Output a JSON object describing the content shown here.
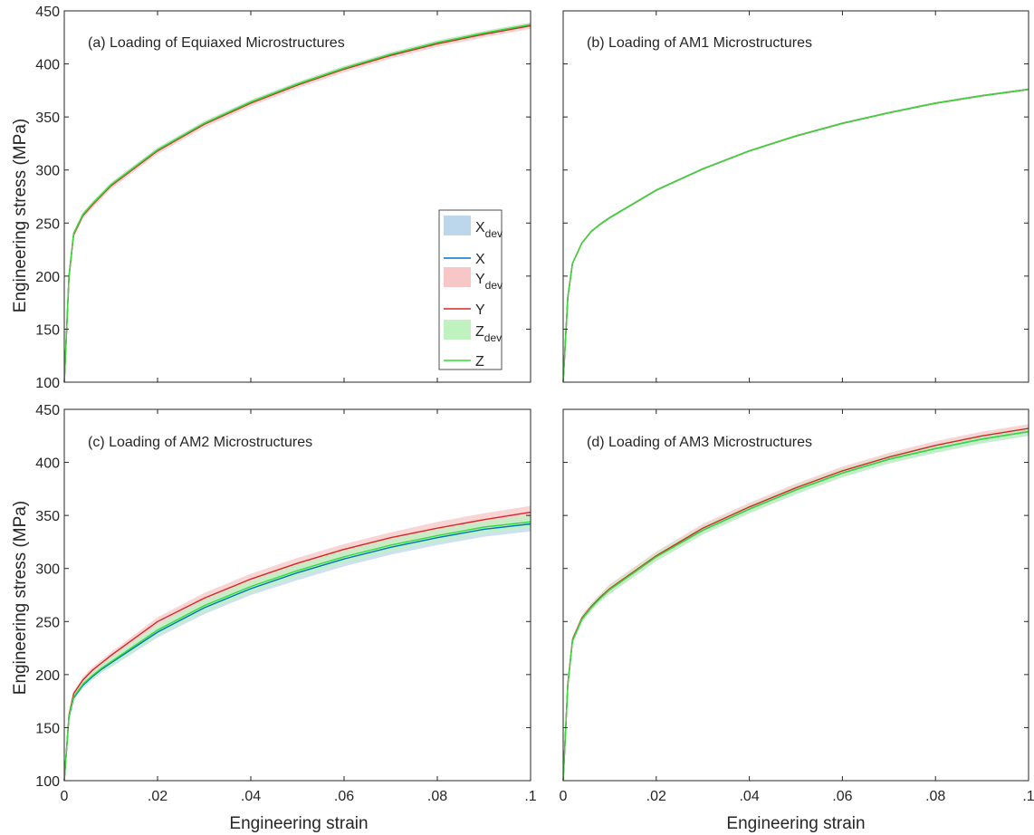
{
  "chart_data": [
    {
      "type": "line",
      "title": "(a) Loading of Equiaxed Microstructures",
      "xlabel": "",
      "ylabel": "Engineering stress (MPa)",
      "xlim": [
        0,
        0.1
      ],
      "ylim": [
        100,
        450
      ],
      "xticks": [],
      "yticks": [
        "100",
        "150",
        "200",
        "250",
        "300",
        "350",
        "400",
        "450"
      ],
      "legend": [
        {
          "key": "Xdev",
          "base": "X",
          "sub": "dev",
          "kind": "band",
          "color": "#bcd7ec"
        },
        {
          "key": "X",
          "base": "X",
          "sub": "",
          "kind": "line",
          "color": "#0072bd"
        },
        {
          "key": "Ydev",
          "base": "Y",
          "sub": "dev",
          "kind": "band",
          "color": "#f7c6c6"
        },
        {
          "key": "Y",
          "base": "Y",
          "sub": "",
          "kind": "line",
          "color": "#d62728"
        },
        {
          "key": "Zdev",
          "base": "Z",
          "sub": "dev",
          "kind": "band",
          "color": "#bff2bf"
        },
        {
          "key": "Z",
          "base": "Z",
          "sub": "",
          "kind": "line",
          "color": "#33dd33"
        }
      ],
      "x": [
        0,
        0.001,
        0.002,
        0.004,
        0.006,
        0.008,
        0.01,
        0.02,
        0.03,
        0.04,
        0.05,
        0.06,
        0.07,
        0.08,
        0.09,
        0.1
      ],
      "series": [
        {
          "name": "X",
          "color": "#0072bd",
          "values": [
            100,
            200,
            240,
            258,
            268,
            277,
            286,
            319,
            344,
            364,
            381,
            396,
            409,
            420,
            429,
            437
          ],
          "band": [
            2,
            2,
            2,
            2,
            2,
            2,
            2,
            2,
            2,
            2,
            2,
            2,
            2,
            2,
            2,
            2
          ]
        },
        {
          "name": "Y",
          "color": "#d62728",
          "values": [
            100,
            199,
            239,
            257,
            267,
            276,
            285,
            318,
            343,
            363,
            380,
            395,
            408,
            419,
            428,
            436
          ],
          "band": [
            3,
            3,
            3,
            3,
            3,
            3,
            3,
            3,
            3,
            3,
            3,
            3,
            3,
            3,
            3,
            3
          ]
        },
        {
          "name": "Z",
          "color": "#33dd33",
          "values": [
            100,
            200,
            240,
            258,
            268,
            277,
            286,
            319,
            344,
            364,
            381,
            396,
            409,
            420,
            429,
            437
          ],
          "band": [
            2,
            2,
            2,
            2,
            2,
            2,
            2,
            2,
            2,
            2,
            2,
            2,
            2,
            2,
            2,
            2
          ]
        }
      ]
    },
    {
      "type": "line",
      "title": "(b) Loading of AM1 Microstructures",
      "xlabel": "",
      "ylabel": "",
      "xlim": [
        0,
        0.1
      ],
      "ylim": [
        100,
        450
      ],
      "xticks": [],
      "yticks": [],
      "x": [
        0,
        0.001,
        0.002,
        0.004,
        0.006,
        0.008,
        0.01,
        0.02,
        0.03,
        0.04,
        0.05,
        0.06,
        0.07,
        0.08,
        0.09,
        0.1
      ],
      "series": [
        {
          "name": "X",
          "color": "#0072bd",
          "values": [
            100,
            180,
            212,
            231,
            242,
            249,
            255,
            281,
            301,
            318,
            332,
            344,
            354,
            363,
            370,
            376
          ],
          "band": [
            1,
            1,
            1,
            1,
            1,
            1,
            1,
            1,
            1,
            1,
            1,
            1,
            1,
            1,
            1,
            1
          ]
        },
        {
          "name": "Y",
          "color": "#d62728",
          "values": [
            100,
            180,
            212,
            231,
            242,
            249,
            255,
            281,
            301,
            318,
            332,
            344,
            354,
            363,
            370,
            376
          ],
          "band": [
            1,
            1,
            1,
            1,
            1,
            1,
            1,
            1,
            1,
            1,
            1,
            1,
            1,
            1,
            1,
            1
          ]
        },
        {
          "name": "Z",
          "color": "#33dd33",
          "values": [
            100,
            180,
            212,
            231,
            242,
            249,
            255,
            281,
            301,
            318,
            332,
            344,
            354,
            363,
            370,
            376
          ],
          "band": [
            1,
            1,
            1,
            1,
            1,
            1,
            1,
            1,
            1,
            1,
            1,
            1,
            1,
            1,
            1,
            1
          ]
        }
      ]
    },
    {
      "type": "line",
      "title": "(c) Loading of AM2 Microstructures",
      "xlabel": "Engineering strain",
      "ylabel": "Engineering stress (MPa)",
      "xlim": [
        0,
        0.1
      ],
      "ylim": [
        100,
        450
      ],
      "xticks": [
        "0",
        ".02",
        ".04",
        ".06",
        ".08",
        ".1"
      ],
      "yticks": [
        "100",
        "150",
        "200",
        "250",
        "300",
        "350",
        "400",
        "450"
      ],
      "x": [
        0,
        0.001,
        0.002,
        0.004,
        0.006,
        0.008,
        0.01,
        0.02,
        0.03,
        0.04,
        0.05,
        0.06,
        0.07,
        0.08,
        0.09,
        0.1
      ],
      "series": [
        {
          "name": "X",
          "color": "#0072bd",
          "values": [
            100,
            160,
            178,
            190,
            198,
            205,
            211,
            240,
            263,
            281,
            296,
            309,
            320,
            329,
            337,
            342
          ],
          "band": [
            1,
            2,
            2,
            3,
            3,
            3,
            4,
            5,
            6,
            6,
            7,
            7,
            7,
            7,
            7,
            7
          ]
        },
        {
          "name": "Y",
          "color": "#d62728",
          "values": [
            100,
            162,
            182,
            195,
            204,
            211,
            218,
            250,
            272,
            290,
            305,
            318,
            329,
            338,
            346,
            353
          ],
          "band": [
            1,
            2,
            2,
            3,
            3,
            3,
            3,
            4,
            5,
            5,
            5,
            5,
            5,
            6,
            6,
            6
          ]
        },
        {
          "name": "Z",
          "color": "#33dd33",
          "values": [
            100,
            161,
            179,
            191,
            199,
            206,
            212,
            242,
            265,
            283,
            298,
            311,
            322,
            331,
            339,
            344
          ],
          "band": [
            1,
            2,
            2,
            3,
            3,
            3,
            4,
            5,
            6,
            6,
            6,
            6,
            6,
            6,
            6,
            6
          ]
        }
      ]
    },
    {
      "type": "line",
      "title": "(d) Loading of AM3 Microstructures",
      "xlabel": "Engineering strain",
      "ylabel": "",
      "xlim": [
        0,
        0.1
      ],
      "ylim": [
        100,
        450
      ],
      "xticks": [
        "0",
        ".02",
        ".04",
        ".06",
        ".08",
        ".1"
      ],
      "yticks": [],
      "x": [
        0,
        0.001,
        0.002,
        0.004,
        0.006,
        0.008,
        0.01,
        0.02,
        0.03,
        0.04,
        0.05,
        0.06,
        0.07,
        0.08,
        0.09,
        0.1
      ],
      "series": [
        {
          "name": "X",
          "color": "#0072bd",
          "values": [
            100,
            190,
            232,
            252,
            263,
            272,
            280,
            311,
            336,
            356,
            374,
            390,
            403,
            413,
            422,
            429
          ],
          "band": [
            2,
            3,
            3,
            3,
            3,
            3,
            4,
            4,
            4,
            4,
            4,
            4,
            4,
            4,
            4,
            4
          ]
        },
        {
          "name": "Y",
          "color": "#d62728",
          "values": [
            100,
            191,
            233,
            253,
            264,
            273,
            281,
            312,
            338,
            358,
            376,
            392,
            405,
            416,
            425,
            432
          ],
          "band": [
            2,
            3,
            3,
            3,
            3,
            3,
            4,
            4,
            4,
            4,
            4,
            4,
            4,
            4,
            4,
            4
          ]
        },
        {
          "name": "Z",
          "color": "#33dd33",
          "values": [
            100,
            190,
            232,
            252,
            263,
            272,
            280,
            311,
            336,
            356,
            374,
            390,
            403,
            413,
            422,
            429
          ],
          "band": [
            2,
            3,
            3,
            3,
            3,
            3,
            4,
            4,
            4,
            4,
            4,
            4,
            4,
            4,
            4,
            4
          ]
        }
      ]
    }
  ]
}
